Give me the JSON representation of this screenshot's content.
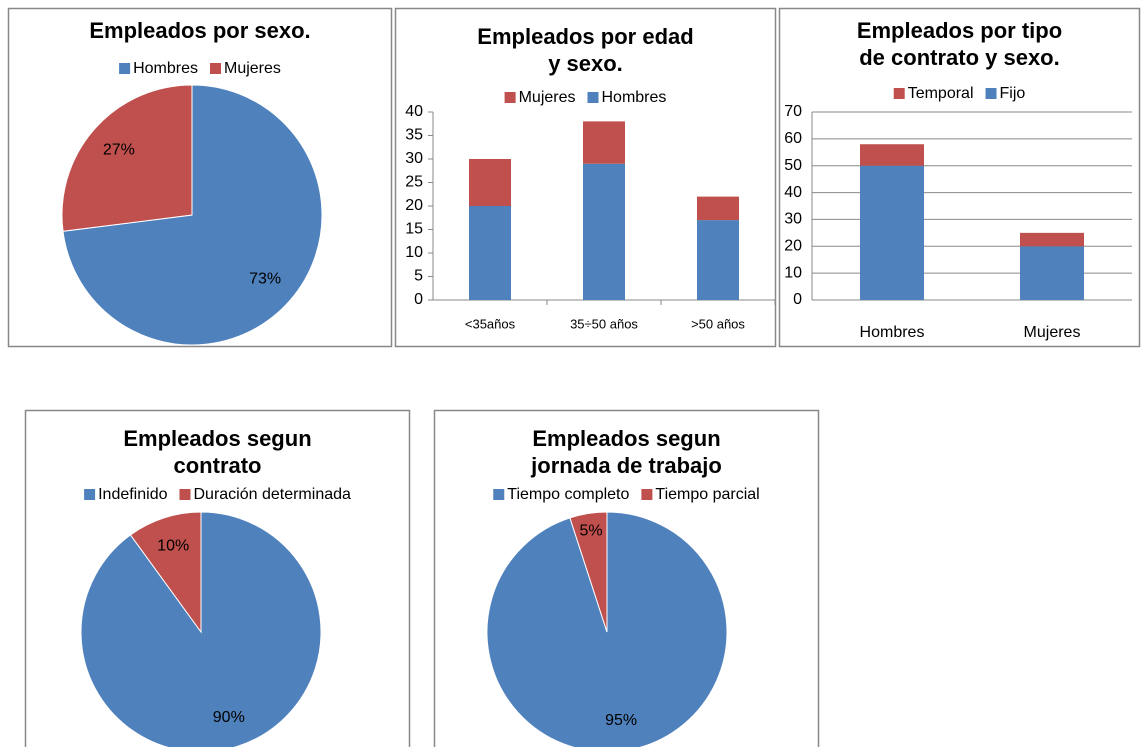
{
  "chart_data": [
    {
      "type": "pie",
      "title": [
        "Empleados por sexo."
      ],
      "categories": [
        "Hombres",
        "Mujeres"
      ],
      "values": [
        73,
        27
      ],
      "value_labels": [
        "73%",
        "27%"
      ],
      "colors": [
        "#4f81bd",
        "#c0504d"
      ],
      "legend": "top"
    },
    {
      "type": "stacked_bar",
      "title": [
        "Empleados por edad",
        "y sexo."
      ],
      "categories": [
        "<35años",
        "35÷50 años",
        ">50 años"
      ],
      "series": [
        {
          "name": "Hombres",
          "color": "#4f81bd",
          "values": [
            20,
            29,
            17
          ]
        },
        {
          "name": "Mujeres",
          "color": "#c0504d",
          "values": [
            10,
            9,
            5
          ]
        }
      ],
      "ylim": [
        0,
        40
      ],
      "yticks": [
        0,
        5,
        10,
        15,
        20,
        25,
        30,
        35,
        40
      ],
      "grid": false,
      "legend": "top"
    },
    {
      "type": "stacked_bar",
      "title": [
        "Empleados por tipo",
        "de contrato y sexo."
      ],
      "categories": [
        "Hombres",
        "Mujeres"
      ],
      "series": [
        {
          "name": "Fijo",
          "color": "#4f81bd",
          "values": [
            50,
            20
          ]
        },
        {
          "name": "Temporal",
          "color": "#c0504d",
          "values": [
            8,
            5
          ]
        }
      ],
      "ylim": [
        0,
        70
      ],
      "yticks": [
        0,
        10,
        20,
        30,
        40,
        50,
        60,
        70
      ],
      "grid": true,
      "legend": "top"
    },
    {
      "type": "pie",
      "title": [
        "Empleados segun",
        "contrato"
      ],
      "categories": [
        "Indefinido",
        "Duración determinada"
      ],
      "values": [
        90,
        10
      ],
      "value_labels": [
        "90%",
        "10%"
      ],
      "colors": [
        "#4f81bd",
        "#c0504d"
      ],
      "legend": "top"
    },
    {
      "type": "pie",
      "title": [
        "Empleados segun",
        "jornada de trabajo"
      ],
      "categories": [
        "Tiempo completo",
        "Tiempo parcial"
      ],
      "values": [
        95,
        5
      ],
      "value_labels": [
        "95%",
        "5%"
      ],
      "colors": [
        "#4f81bd",
        "#c0504d"
      ],
      "legend": "top"
    }
  ]
}
